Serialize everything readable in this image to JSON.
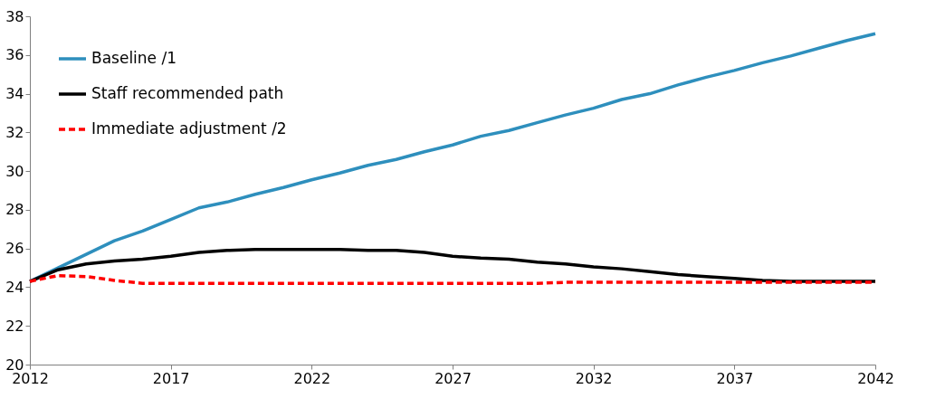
{
  "chart_data": {
    "type": "line",
    "x": [
      2012,
      2013,
      2014,
      2015,
      2016,
      2017,
      2018,
      2019,
      2020,
      2021,
      2022,
      2023,
      2024,
      2025,
      2026,
      2027,
      2028,
      2029,
      2030,
      2031,
      2032,
      2033,
      2034,
      2035,
      2036,
      2037,
      2038,
      2039,
      2040,
      2041,
      2042
    ],
    "series": [
      {
        "name": "Baseline /1",
        "color": "#2e8fbd",
        "line_style": "solid",
        "values": [
          24.3,
          25.0,
          25.7,
          26.4,
          26.9,
          27.5,
          28.1,
          28.4,
          28.8,
          29.15,
          29.55,
          29.9,
          30.3,
          30.6,
          31.0,
          31.35,
          31.8,
          32.1,
          32.5,
          32.9,
          33.25,
          33.7,
          34.0,
          34.45,
          34.85,
          35.2,
          35.6,
          35.95,
          36.35,
          36.75,
          37.1
        ]
      },
      {
        "name": "Staff recommended  path",
        "color": "#000000",
        "line_style": "solid",
        "values": [
          24.3,
          24.9,
          25.2,
          25.35,
          25.45,
          25.6,
          25.8,
          25.9,
          25.95,
          25.95,
          25.95,
          25.95,
          25.9,
          25.9,
          25.8,
          25.6,
          25.5,
          25.45,
          25.3,
          25.2,
          25.05,
          24.95,
          24.8,
          24.65,
          24.55,
          24.45,
          24.35,
          24.3,
          24.3,
          24.3,
          24.3
        ]
      },
      {
        "name": "Immediate  adjustment /2",
        "color": "#ff0000",
        "line_style": "dashed",
        "values": [
          24.3,
          24.6,
          24.55,
          24.35,
          24.2,
          24.2,
          24.2,
          24.2,
          24.2,
          24.2,
          24.2,
          24.2,
          24.2,
          24.2,
          24.2,
          24.2,
          24.2,
          24.2,
          24.2,
          24.25,
          24.25,
          24.25,
          24.25,
          24.25,
          24.25,
          24.25,
          24.25,
          24.25,
          24.25,
          24.25,
          24.25
        ]
      }
    ],
    "xlim": [
      2012,
      2042
    ],
    "xticks": [
      2012,
      2017,
      2022,
      2027,
      2032,
      2037,
      2042
    ],
    "ylim": [
      20,
      38
    ],
    "yticks": [
      20,
      22,
      24,
      26,
      28,
      30,
      32,
      34,
      36,
      38
    ],
    "grid": false,
    "legend": "top left",
    "marker": "none"
  }
}
